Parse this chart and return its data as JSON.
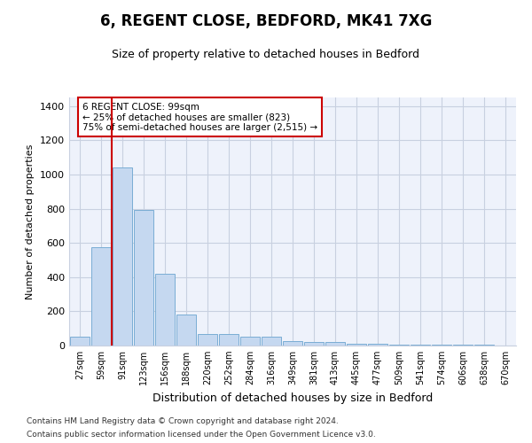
{
  "title1": "6, REGENT CLOSE, BEDFORD, MK41 7XG",
  "title2": "Size of property relative to detached houses in Bedford",
  "xlabel": "Distribution of detached houses by size in Bedford",
  "ylabel": "Number of detached properties",
  "categories": [
    "27sqm",
    "59sqm",
    "91sqm",
    "123sqm",
    "156sqm",
    "188sqm",
    "220sqm",
    "252sqm",
    "284sqm",
    "316sqm",
    "349sqm",
    "381sqm",
    "413sqm",
    "445sqm",
    "477sqm",
    "509sqm",
    "541sqm",
    "574sqm",
    "606sqm",
    "638sqm",
    "670sqm"
  ],
  "values": [
    50,
    575,
    1040,
    790,
    420,
    180,
    65,
    65,
    50,
    50,
    25,
    20,
    20,
    10,
    10,
    5,
    5,
    3,
    3,
    3,
    2
  ],
  "bar_color": "#c5d8f0",
  "bar_edge_color": "#7aadd4",
  "red_line_index": 2,
  "annotation_line1": "6 REGENT CLOSE: 99sqm",
  "annotation_line2": "← 25% of detached houses are smaller (823)",
  "annotation_line3": "75% of semi-detached houses are larger (2,515) →",
  "annotation_box_color": "#ffffff",
  "annotation_box_edge": "#cc0000",
  "red_line_color": "#cc0000",
  "ylim": [
    0,
    1450
  ],
  "yticks": [
    0,
    200,
    400,
    600,
    800,
    1000,
    1200,
    1400
  ],
  "footer1": "Contains HM Land Registry data © Crown copyright and database right 2024.",
  "footer2": "Contains public sector information licensed under the Open Government Licence v3.0.",
  "grid_color": "#c8d0e0",
  "bg_color": "#eef2fb"
}
